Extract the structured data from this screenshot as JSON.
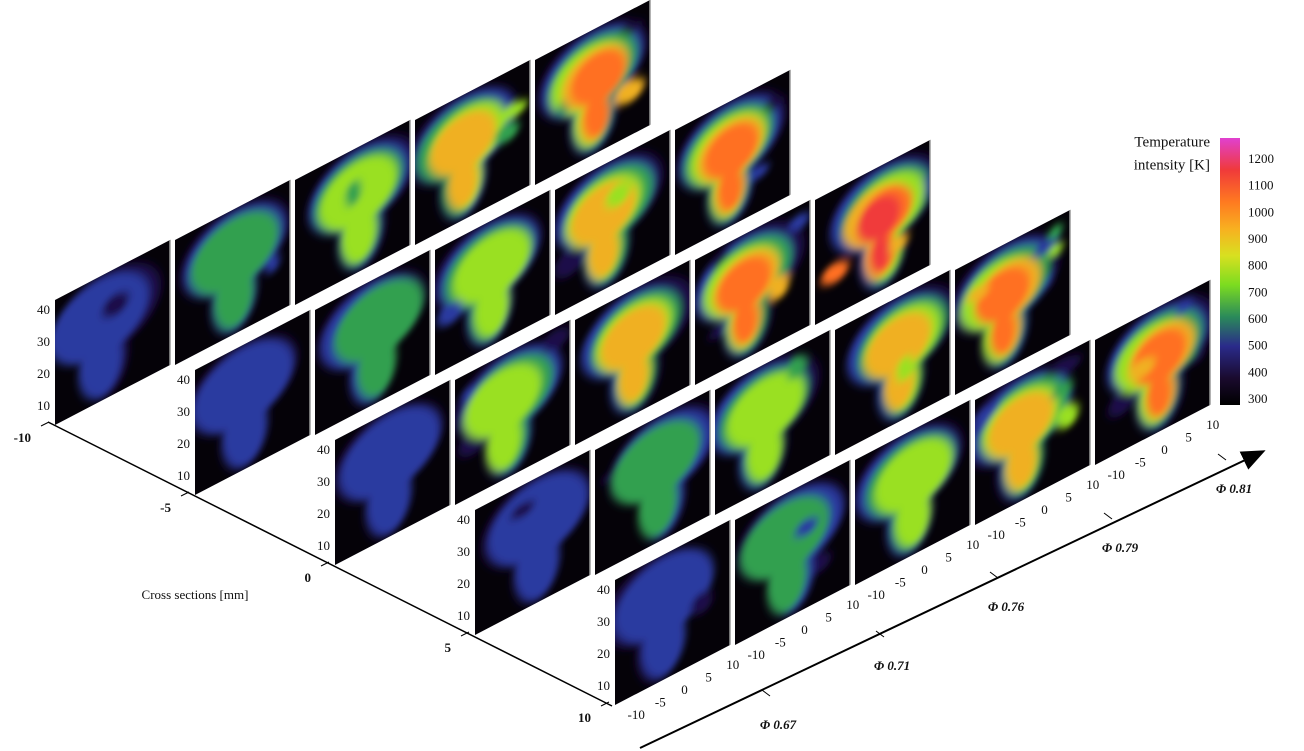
{
  "colorbar": {
    "title_line1": "Temperature",
    "title_line2": "intensity [K]",
    "ticks": [
      "300",
      "400",
      "500",
      "600",
      "700",
      "800",
      "900",
      "1000",
      "1100",
      "1200"
    ]
  },
  "cross_section_axis": {
    "label": "Cross sections [mm]",
    "ticks": [
      "-10",
      "-5",
      "0",
      "5",
      "10"
    ]
  },
  "phi_axis": {
    "ticks": [
      "Φ 0.67",
      "Φ 0.71",
      "Φ 0.76",
      "Φ 0.79",
      "Φ 0.81"
    ]
  },
  "panel_axes": {
    "height_ticks": [
      "10",
      "20",
      "30",
      "40"
    ],
    "width_ticks": [
      "-10",
      "-5",
      "0",
      "5",
      "10"
    ]
  }
}
